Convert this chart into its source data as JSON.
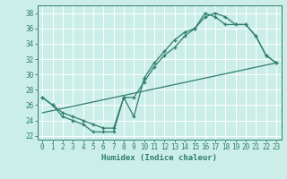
{
  "background_color": "#cceee8",
  "grid_color": "#ffffff",
  "line_color": "#2e7d6e",
  "xlabel": "Humidex (Indice chaleur)",
  "xlim": [
    -0.5,
    23.5
  ],
  "ylim": [
    21.5,
    39.0
  ],
  "xticks": [
    0,
    1,
    2,
    3,
    4,
    5,
    6,
    7,
    8,
    9,
    10,
    11,
    12,
    13,
    14,
    15,
    16,
    17,
    18,
    19,
    20,
    21,
    22,
    23
  ],
  "yticks": [
    22,
    24,
    26,
    28,
    30,
    32,
    34,
    36,
    38
  ],
  "curve_upper_x": [
    0,
    1,
    2,
    3,
    4,
    5,
    6,
    7,
    8,
    9,
    10,
    11,
    12,
    13,
    14,
    15,
    16,
    17,
    18,
    19,
    20,
    21,
    22,
    23
  ],
  "curve_upper_y": [
    27,
    26,
    25,
    24.5,
    24,
    23.5,
    23,
    23,
    27,
    27,
    29,
    31,
    32.5,
    33.5,
    35,
    36,
    38,
    37.5,
    36.5,
    36.5,
    36.5,
    35,
    32.5,
    31.5
  ],
  "curve_lower_x": [
    0,
    1,
    2,
    3,
    4,
    5,
    6,
    7,
    8,
    9,
    10,
    11,
    12,
    13,
    14,
    15,
    16,
    17,
    18,
    19,
    20,
    21,
    22,
    23
  ],
  "curve_lower_y": [
    27,
    26,
    24.5,
    24,
    23.5,
    22.5,
    22.5,
    22.5,
    27,
    24.5,
    29.5,
    31.5,
    33,
    34.5,
    35.5,
    36,
    37.5,
    38,
    37.5,
    36.5,
    36.5,
    35,
    32.5,
    31.5
  ],
  "trend_x": [
    0,
    23
  ],
  "trend_y": [
    25.0,
    31.5
  ]
}
